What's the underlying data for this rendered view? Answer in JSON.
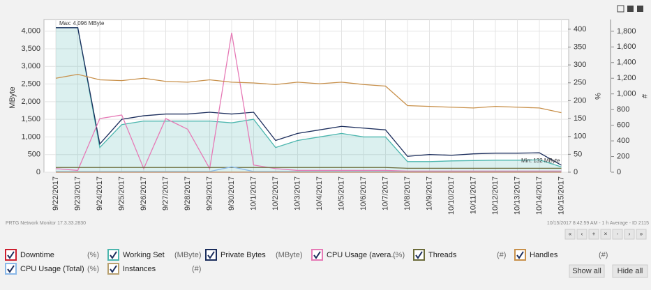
{
  "chart_data": {
    "type": "line",
    "categories": [
      "9/22/2017",
      "9/23/2017",
      "9/24/2017",
      "9/25/2017",
      "9/26/2017",
      "9/27/2017",
      "9/28/2017",
      "9/29/2017",
      "9/30/2017",
      "10/1/2017",
      "10/2/2017",
      "10/3/2017",
      "10/4/2017",
      "10/5/2017",
      "10/6/2017",
      "10/7/2017",
      "10/8/2017",
      "10/9/2017",
      "10/10/2017",
      "10/11/2017",
      "10/12/2017",
      "10/13/2017",
      "10/14/2017",
      "10/15/2017"
    ],
    "ylabel": "MByte",
    "y2label": "%",
    "y3label": "#",
    "ylim": [
      0,
      4330
    ],
    "yticks": [
      0,
      500,
      {
        "value": 1000,
        "label": "1,000"
      },
      {
        "value": 1500,
        "label": "1,500"
      },
      {
        "value": 2000,
        "label": "2,000"
      },
      {
        "value": 2500,
        "label": "2,500"
      },
      {
        "value": 3000,
        "label": "3,000"
      },
      {
        "value": 3500,
        "label": "3,500"
      },
      {
        "value": 4000,
        "label": "4,000"
      }
    ],
    "y2lim": [
      0,
      427
    ],
    "y2ticks": [
      0,
      50,
      100,
      150,
      200,
      250,
      300,
      350,
      400
    ],
    "y3lim": [
      0,
      1950
    ],
    "y3ticks": [
      0,
      200,
      400,
      600,
      800,
      {
        "value": 1000,
        "label": "1,000"
      },
      {
        "value": 1200,
        "label": "1,200"
      },
      {
        "value": 1400,
        "label": "1,400"
      },
      {
        "value": 1600,
        "label": "1,600"
      },
      {
        "value": 1800,
        "label": "1,800"
      }
    ],
    "grid": true,
    "annotations": [
      "Max: 4,096 MByte",
      "Min: 132 MByte"
    ],
    "series": [
      {
        "name": "Downtime",
        "unit": "(%)",
        "color": "#cc1f2f",
        "axis": "y2",
        "values": [
          0,
          0,
          0,
          0,
          0,
          0,
          0,
          0,
          0,
          0,
          0,
          0,
          0,
          0,
          0,
          0,
          0,
          0,
          0,
          0,
          0,
          0,
          0,
          0
        ]
      },
      {
        "name": "Working Set",
        "unit": "(MByte)",
        "color": "#4cb6ae",
        "axis": "y",
        "area": true,
        "values": [
          4096,
          4096,
          700,
          1350,
          1450,
          1450,
          1450,
          1450,
          1400,
          1500,
          700,
          900,
          1000,
          1100,
          1000,
          1000,
          300,
          300,
          320,
          330,
          340,
          340,
          350,
          150
        ]
      },
      {
        "name": "Private Bytes",
        "unit": "(MByte)",
        "color": "#1b2d5c",
        "axis": "y",
        "values": [
          4096,
          4096,
          800,
          1500,
          1600,
          1650,
          1650,
          1700,
          1650,
          1700,
          900,
          1100,
          1200,
          1300,
          1250,
          1200,
          450,
          500,
          480,
          520,
          540,
          540,
          550,
          200
        ]
      },
      {
        "name": "CPU Usage (avera...",
        "unit": "(%)",
        "color": "#e67ab6",
        "axis": "y2",
        "values": [
          10,
          5,
          150,
          160,
          10,
          150,
          120,
          10,
          390,
          20,
          10,
          5,
          5,
          5,
          5,
          5,
          3,
          3,
          3,
          3,
          3,
          3,
          3,
          3
        ]
      },
      {
        "name": "Threads",
        "unit": "(#)",
        "color": "#6b6b3a",
        "axis": "y3",
        "values": [
          60,
          60,
          60,
          60,
          60,
          60,
          60,
          60,
          60,
          60,
          60,
          60,
          60,
          60,
          60,
          60,
          50,
          50,
          50,
          50,
          50,
          50,
          50,
          50
        ]
      },
      {
        "name": "Handles",
        "unit": "(#)",
        "color": "#c8904a",
        "axis": "y3",
        "values": [
          1200,
          1250,
          1180,
          1170,
          1200,
          1160,
          1150,
          1180,
          1150,
          1140,
          1120,
          1150,
          1130,
          1150,
          1120,
          1100,
          850,
          840,
          830,
          820,
          840,
          830,
          820,
          760
        ]
      },
      {
        "name": "CPU Usage (Total)",
        "unit": "(%)",
        "color": "#8ab8e8",
        "axis": "y2",
        "values": [
          2,
          2,
          2,
          2,
          2,
          2,
          2,
          2,
          15,
          2,
          2,
          2,
          2,
          2,
          2,
          2,
          1,
          1,
          1,
          1,
          1,
          1,
          1,
          1
        ]
      },
      {
        "name": "Instances",
        "unit": "(#)",
        "color": "#b8a070",
        "axis": "y3",
        "values": [
          1,
          1,
          1,
          1,
          1,
          1,
          1,
          1,
          1,
          1,
          1,
          1,
          1,
          1,
          1,
          1,
          1,
          1,
          1,
          1,
          1,
          1,
          1,
          1
        ]
      }
    ]
  },
  "footer": {
    "left": "PRTG Network Monitor 17.3.33.2830",
    "right": "10/15/2017 8:42:59 AM - 1 h Average - ID 2115"
  },
  "nav": [
    "«",
    "‹",
    "+",
    "×",
    "-",
    "›",
    "»"
  ],
  "buttons": [
    "Show all",
    "Hide all"
  ]
}
